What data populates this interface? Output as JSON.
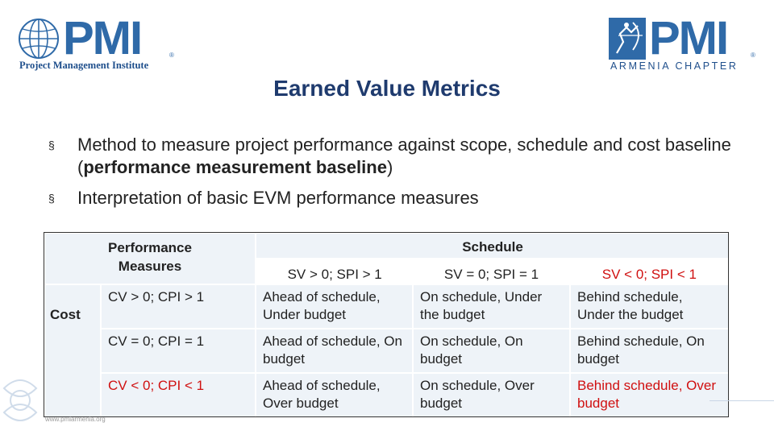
{
  "logos": {
    "left": {
      "letters": "PMI",
      "caption": "Project Management Institute",
      "reg": "®"
    },
    "right": {
      "letters": "PMI",
      "caption": "ARMENIA CHAPTER",
      "reg": "®"
    }
  },
  "title": "Earned Value Metrics",
  "bullets": [
    {
      "text_before": "Method to measure project performance against scope, schedule and cost baseline (",
      "bold": "performance measurement baseline",
      "text_after": ")"
    },
    {
      "text_before": "Interpretation of basic EVM performance measures",
      "bold": "",
      "text_after": ""
    }
  ],
  "bullet_marker": "§",
  "table": {
    "perf_header": "Performance Measures",
    "schedule_header": "Schedule",
    "cost_label": "Cost",
    "schedule_cols": [
      "SV > 0; SPI > 1",
      "SV = 0; SPI = 1",
      "SV < 0; SPI < 1"
    ],
    "rows": [
      {
        "cost": "CV > 0; CPI > 1",
        "cells": [
          "Ahead of schedule, Under budget",
          "On schedule, Under the budget",
          "Behind schedule, Under the budget"
        ]
      },
      {
        "cost": "CV = 0; CPI = 1",
        "cells": [
          "Ahead of schedule, On budget",
          "On schedule, On budget",
          "Behind schedule, On budget"
        ]
      },
      {
        "cost": "CV < 0; CPI < 1",
        "cells": [
          "Ahead of schedule, Over budget",
          "On schedule, Over budget",
          "Behind schedule, Over budget"
        ]
      }
    ]
  },
  "footer_url": "www.pmiarmenia.org",
  "colors": {
    "title": "#1f3b6e",
    "brand_blue": "#2f6aa8",
    "alert_red": "#d01010",
    "header_bg": "#eef3f8"
  }
}
